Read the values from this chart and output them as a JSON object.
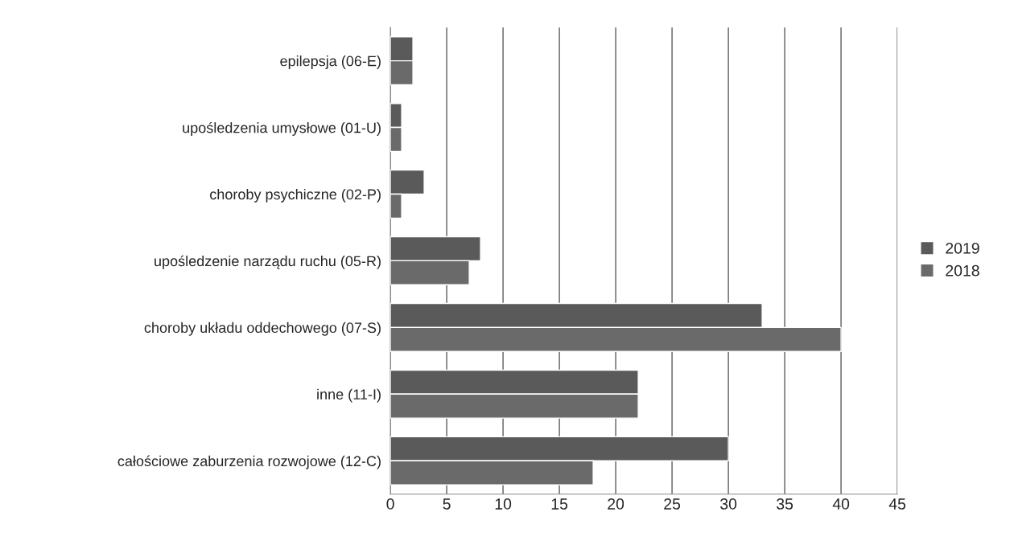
{
  "chart_data": {
    "type": "bar",
    "orientation": "horizontal",
    "categories": [
      "epilepsja (06-E)",
      "upośledzenia umysłowe (01-U)",
      "choroby psychiczne (02-P)",
      "upośledzenie narządu ruchu (05-R)",
      "choroby układu oddechowego (07-S)",
      "inne (11-I)",
      "całościowe zaburzenia rozwojowe (12-C)"
    ],
    "series": [
      {
        "name": "2019",
        "color": "#5a5a5a",
        "values": [
          2,
          1,
          3,
          8,
          33,
          22,
          30
        ]
      },
      {
        "name": "2018",
        "color": "#6a6a6a",
        "values": [
          2,
          1,
          1,
          7,
          40,
          22,
          18
        ]
      }
    ],
    "xlim": [
      0,
      45
    ],
    "xticks": [
      0,
      5,
      10,
      15,
      20,
      25,
      30,
      35,
      40,
      45
    ],
    "grid": "x",
    "legend": "right"
  }
}
